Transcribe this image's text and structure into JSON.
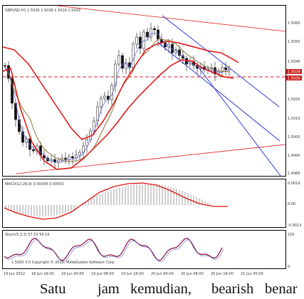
{
  "chart": {
    "main_label": "GBPUSD,H1 1.5026 1.5038 1.5016 1.5029",
    "macd_label": "MACD(12,26,9) 0.00039 0.00053",
    "stoch_label": "Stoch(5,3,3) 57.53 59.16",
    "stoch_sub": "1.5000  3.0 Copyright © 2012, MetaQuotes Software Corp.",
    "price_labels": [
      "1.5060",
      "1.5050",
      "1.5040",
      "1.5020",
      "1.5010",
      "1.5000",
      "1.4990",
      "1.4980"
    ],
    "current_price_tag": "1.5029",
    "current_price_tag2": "1.5026",
    "macd_labels": [
      "0.0016",
      "0.00",
      "-0.0013"
    ],
    "stoch_labels": [
      "100",
      "0"
    ],
    "time_labels": [
      "19 Jun 2012",
      "18 Jun 16:00",
      "19 Jun 00:00",
      "19 Jun 08:00",
      "19 Jun 16:00",
      "20 Jun 00:00",
      "20 Jun 08:00",
      "20 Jun 16:00",
      "21 Jun 00:00"
    ],
    "colors": {
      "bollinger": "#e01010",
      "channel": "#1a2bd6",
      "ma_blue": "#6a6ae0",
      "ma_brown": "#8a6a2a",
      "candle": "#111111",
      "level": "#cc2222"
    }
  },
  "caption": {
    "words": [
      "Satu",
      "jam",
      "kemudian,",
      "bearish",
      "benar"
    ]
  }
}
